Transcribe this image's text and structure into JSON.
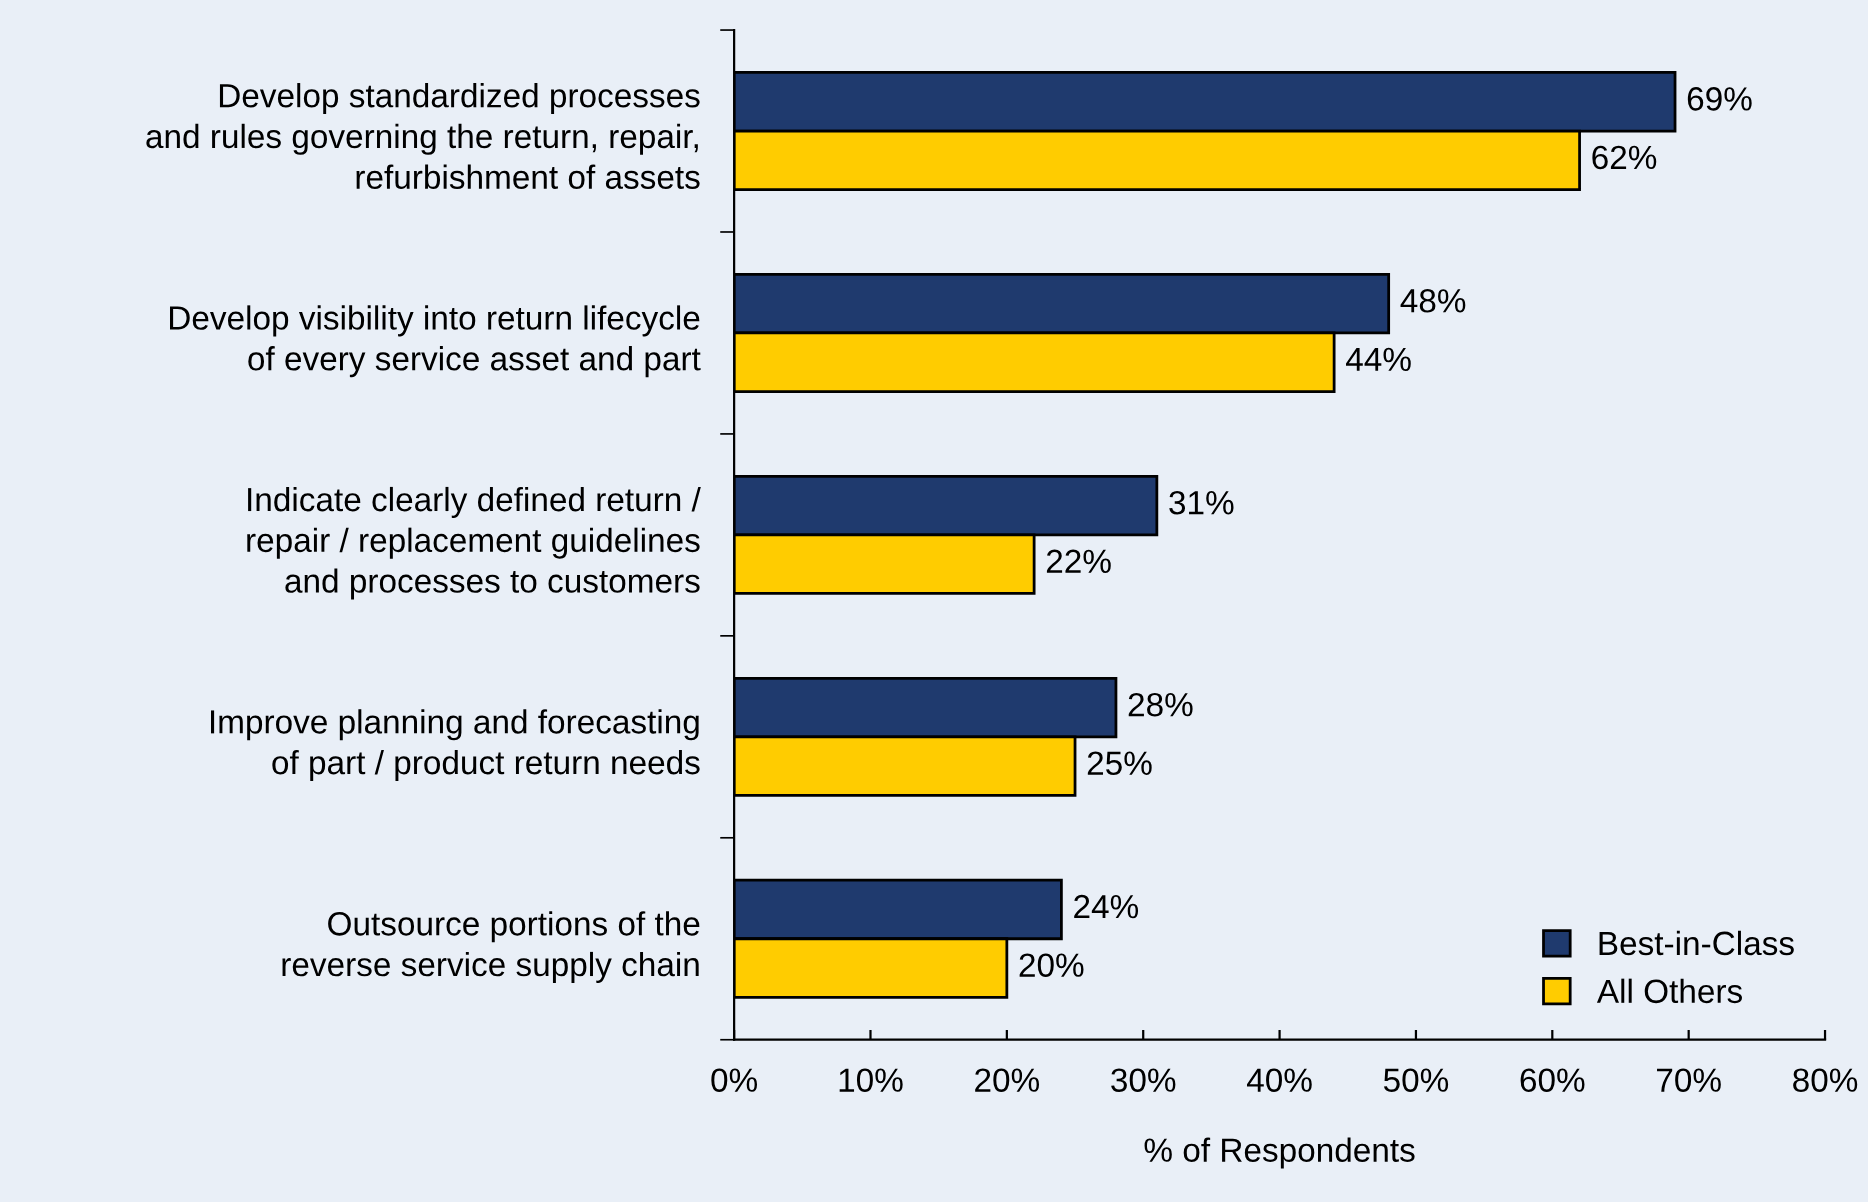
{
  "chart_data": {
    "type": "bar",
    "orientation": "horizontal",
    "xlabel": "% of Respondents",
    "categories": [
      "Develop standardized processes\nand rules governing the return, repair,\nrefurbishment of assets",
      "Develop visibility into return lifecycle\nof every service asset and part",
      "Indicate clearly defined return /\nrepair / replacement guidelines\nand processes to customers",
      "Improve planning and forecasting\nof part / product return needs",
      "Outsource portions of the\nreverse service supply chain"
    ],
    "series": [
      {
        "name": "Best-in-Class",
        "color": "#1f3a6e",
        "values": [
          69,
          48,
          31,
          28,
          24
        ],
        "value_labels": [
          "69%",
          "48%",
          "31%",
          "28%",
          "24%"
        ]
      },
      {
        "name": "All Others",
        "color": "#ffcc00",
        "values": [
          62,
          44,
          22,
          25,
          20
        ],
        "value_labels": [
          "62%",
          "44%",
          "22%",
          "25%",
          "20%"
        ]
      }
    ],
    "xlim": [
      0,
      80
    ],
    "xticks": [
      {
        "value": 0,
        "label": "0%"
      },
      {
        "value": 10,
        "label": "10%"
      },
      {
        "value": 20,
        "label": "20%"
      },
      {
        "value": 30,
        "label": "30%"
      },
      {
        "value": 40,
        "label": "40%"
      },
      {
        "value": 50,
        "label": "50%"
      },
      {
        "value": 60,
        "label": "60%"
      },
      {
        "value": 70,
        "label": "70%"
      },
      {
        "value": 80,
        "label": "80%"
      }
    ],
    "grid": false,
    "legend": "bottom right"
  }
}
